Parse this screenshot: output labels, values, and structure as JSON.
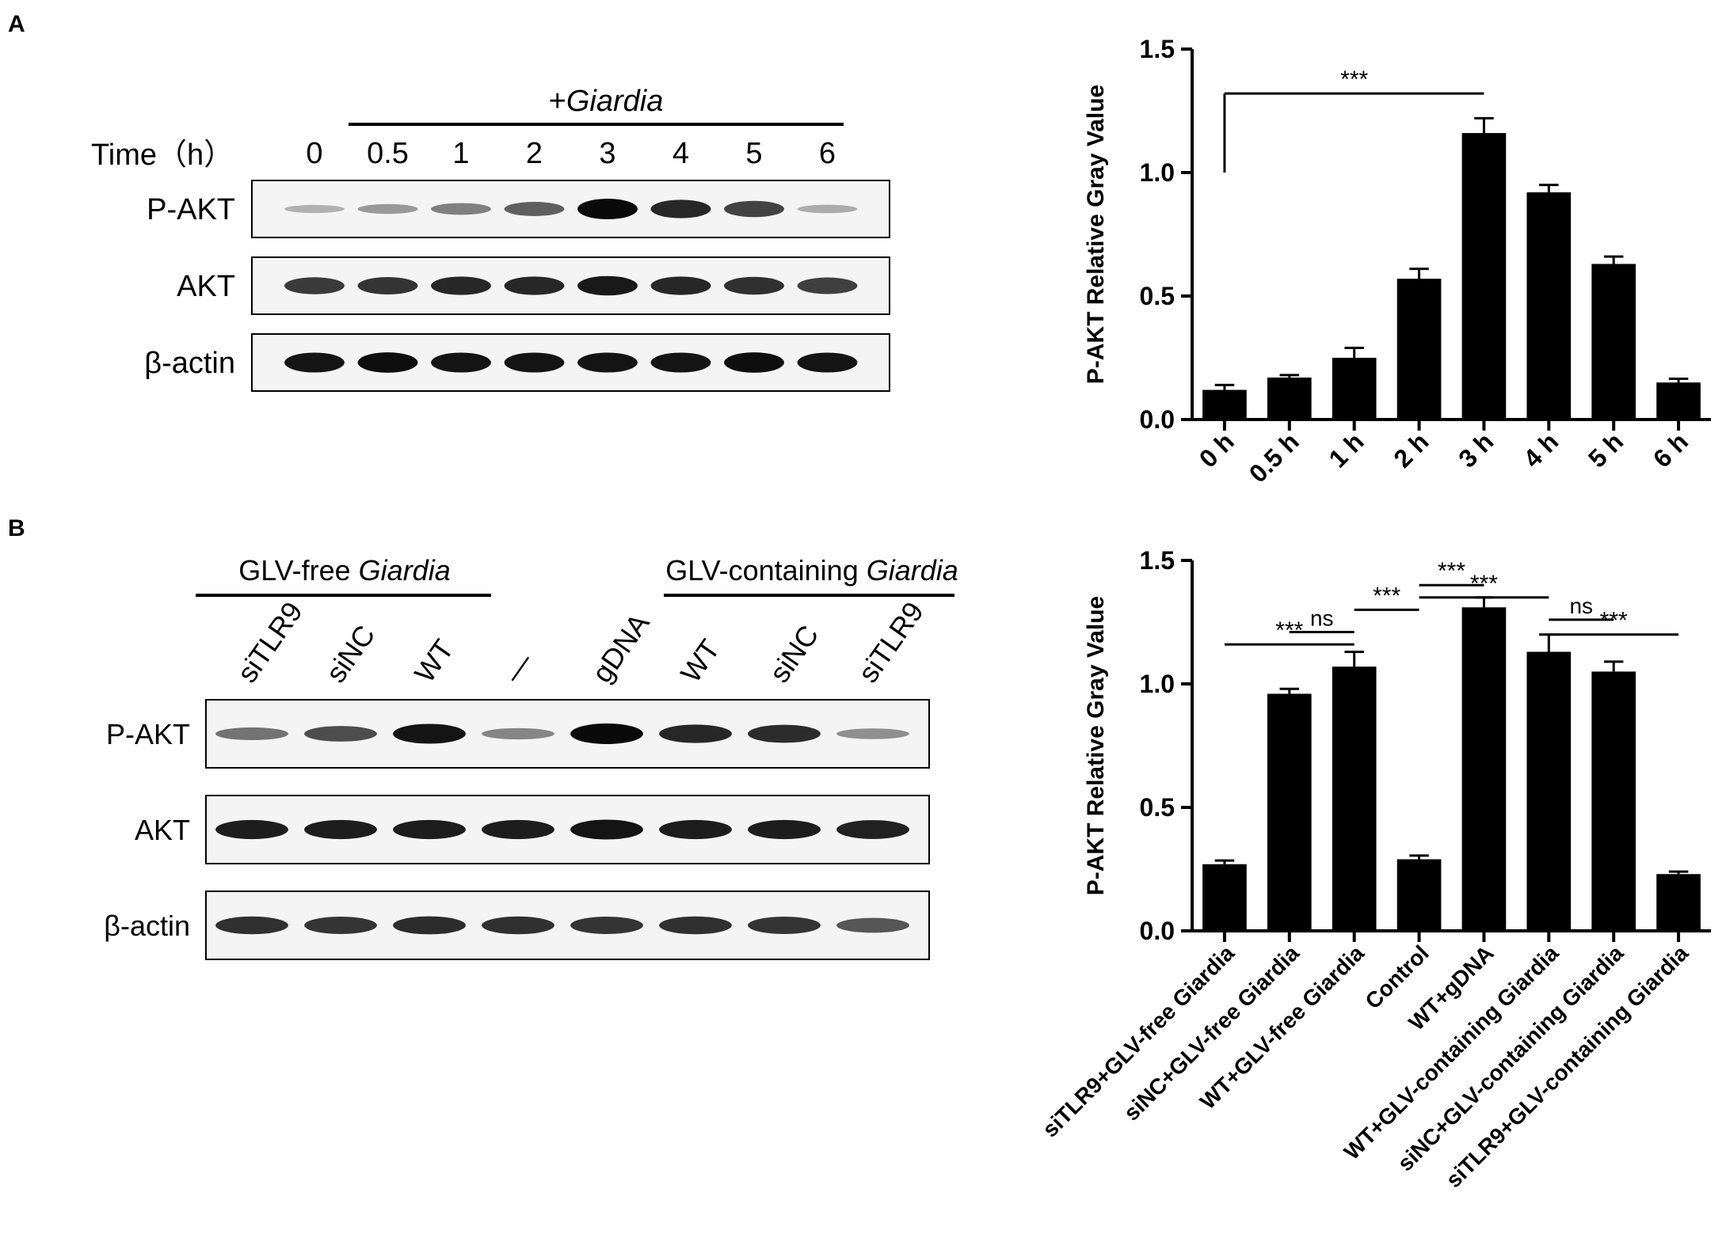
{
  "panel_a": {
    "label": "A",
    "blot": {
      "treatment_label_prefix": "+",
      "treatment_label_italic": "Giardia",
      "time_label": "Time（h）",
      "lanes": [
        "0",
        "0.5",
        "1",
        "2",
        "3",
        "4",
        "5",
        "6"
      ],
      "rows": [
        {
          "name": "P-AKT",
          "band_intensity": [
            0.12,
            0.25,
            0.38,
            0.55,
            1.0,
            0.85,
            0.7,
            0.15
          ]
        },
        {
          "name": "AKT",
          "band_intensity": [
            0.75,
            0.78,
            0.85,
            0.85,
            0.92,
            0.85,
            0.8,
            0.72
          ]
        },
        {
          "name": "β-actin",
          "band_intensity": [
            0.95,
            0.98,
            0.95,
            0.95,
            0.95,
            0.95,
            0.98,
            0.95
          ]
        }
      ]
    }
  },
  "panel_b": {
    "label": "B",
    "blot": {
      "group_left_text": "GLV-free ",
      "group_left_italic": "Giardia",
      "group_right_text": "GLV-containing ",
      "group_right_italic": "Giardia",
      "lanes": [
        "siTLR9",
        "siNC",
        "WT",
        "—",
        "gDNA",
        "WT",
        "siNC",
        "siTLR9"
      ],
      "rows": [
        {
          "name": "P-AKT",
          "band_intensity": [
            0.45,
            0.65,
            0.95,
            0.35,
            1.0,
            0.85,
            0.82,
            0.3
          ]
        },
        {
          "name": "AKT",
          "band_intensity": [
            0.9,
            0.9,
            0.9,
            0.9,
            0.95,
            0.9,
            0.9,
            0.88
          ]
        },
        {
          "name": "β-actin",
          "band_intensity": [
            0.8,
            0.78,
            0.82,
            0.8,
            0.78,
            0.8,
            0.78,
            0.6
          ]
        }
      ]
    }
  },
  "chart_data": [
    {
      "type": "bar",
      "ylabel": "P-AKT Relative Gray Value",
      "ylim": [
        0,
        1.5
      ],
      "yticks": [
        "0.0",
        "0.5",
        "1.0",
        "1.5"
      ],
      "categories": [
        "0 h",
        "0.5 h",
        "1 h",
        "2 h",
        "3 h",
        "4 h",
        "5 h",
        "6 h"
      ],
      "values": [
        0.12,
        0.17,
        0.25,
        0.57,
        1.16,
        0.92,
        0.63,
        0.15
      ],
      "errors": [
        0.02,
        0.01,
        0.04,
        0.04,
        0.06,
        0.03,
        0.03,
        0.015
      ],
      "significance": [
        {
          "from": 0,
          "to": 4,
          "label": "***",
          "y": 1.32
        }
      ]
    },
    {
      "type": "bar",
      "ylabel": "P-AKT Relative Gray Value",
      "ylim": [
        0,
        1.5
      ],
      "yticks": [
        "0.0",
        "0.5",
        "1.0",
        "1.5"
      ],
      "categories": [
        "siTLR9+GLV-free Giardia",
        "siNC+GLV-free Giardia",
        "WT+GLV-free Giardia",
        "Control",
        "WT+gDNA",
        "WT+GLV-containing Giardia",
        "siNC+GLV-containing Giardia",
        "siTLR9+GLV-containing Giardia"
      ],
      "values": [
        0.27,
        0.96,
        1.07,
        0.29,
        1.31,
        1.13,
        1.05,
        0.23
      ],
      "errors": [
        0.015,
        0.02,
        0.06,
        0.015,
        0.04,
        0.07,
        0.04,
        0.01
      ],
      "significance": [
        {
          "from": 0,
          "to": 2,
          "label": "***",
          "y": 1.16
        },
        {
          "from": 1,
          "to": 2,
          "label": "ns",
          "y": 1.21
        },
        {
          "from": 2,
          "to": 3,
          "label": "***",
          "y": 1.3
        },
        {
          "from": 3,
          "to": 4,
          "label": "***",
          "y": 1.4
        },
        {
          "from": 3,
          "to": 5,
          "label": "***",
          "y": 1.35
        },
        {
          "from": 5,
          "to": 6,
          "label": "ns",
          "y": 1.26
        },
        {
          "from": 5,
          "to": 7,
          "label": "***",
          "y": 1.2
        }
      ]
    }
  ]
}
